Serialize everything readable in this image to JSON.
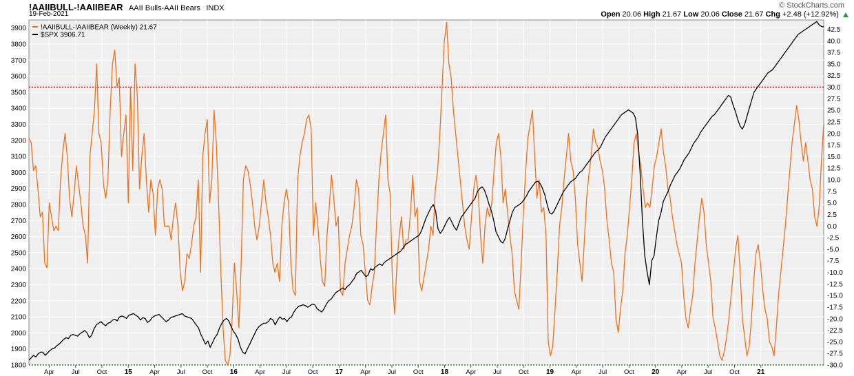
{
  "header": {
    "symbol": "!AAIIBULL-!AAIIBEAR",
    "description": "AAII Bulls-AAII Bears",
    "exchange": "INDX",
    "date": "19-Feb-2021",
    "source": "© StockCharts.com",
    "open_label": "Open",
    "open": "20.06",
    "high_label": "High",
    "high": "21.67",
    "low_label": "Low",
    "low": "20.06",
    "close_label": "Close",
    "close": "21.67",
    "chg_label": "Chg",
    "chg": "+2.48 (+12.92%)",
    "chg_icon": "up-triangle-icon"
  },
  "chart_data": {
    "type": "line",
    "colors": {
      "bull_bear": "#f07017",
      "spx": "#000000",
      "bg": "#efefef",
      "resistance": "#cc0000",
      "support": "#228822"
    },
    "left_axis": {
      "min": 1800,
      "max": 3950,
      "ticks": [
        1800,
        1900,
        2000,
        2100,
        2200,
        2300,
        2400,
        2500,
        2600,
        2700,
        2800,
        2900,
        3000,
        3100,
        3200,
        3300,
        3400,
        3500,
        3600,
        3700,
        3800,
        3900
      ]
    },
    "right_axis": {
      "min": -30,
      "max": 44.5,
      "ticks": [
        "42.5",
        "40.0",
        "37.5",
        "35.0",
        "32.5",
        "30.0",
        "27.5",
        "25.0",
        "22.5",
        "20.0",
        "17.5",
        "15.0",
        "12.5",
        "10.0",
        "7.5",
        "5.0",
        "2.5",
        "0.0",
        "-2.5",
        "-5.0",
        "-7.5",
        "-10.0",
        "-12.5",
        "-15.0",
        "-17.5",
        "-20.0",
        "-22.5",
        "-25.0",
        "-27.5",
        "-30.0"
      ]
    },
    "x_range": [
      0,
      392
    ],
    "x_ticks": [
      {
        "label": "Apr",
        "x": 10
      },
      {
        "label": "Jul",
        "x": 23
      },
      {
        "label": "Oct",
        "x": 36
      },
      {
        "label": "15",
        "x": 49,
        "year": true
      },
      {
        "label": "Apr",
        "x": 62
      },
      {
        "label": "Jul",
        "x": 75
      },
      {
        "label": "Oct",
        "x": 88
      },
      {
        "label": "16",
        "x": 101,
        "year": true
      },
      {
        "label": "Apr",
        "x": 114
      },
      {
        "label": "Jul",
        "x": 127
      },
      {
        "label": "Oct",
        "x": 140
      },
      {
        "label": "17",
        "x": 153,
        "year": true
      },
      {
        "label": "Apr",
        "x": 166
      },
      {
        "label": "Jul",
        "x": 179
      },
      {
        "label": "Oct",
        "x": 192
      },
      {
        "label": "18",
        "x": 205,
        "year": true
      },
      {
        "label": "Apr",
        "x": 218
      },
      {
        "label": "Jul",
        "x": 231
      },
      {
        "label": "Oct",
        "x": 244
      },
      {
        "label": "19",
        "x": 257,
        "year": true
      },
      {
        "label": "Apr",
        "x": 270
      },
      {
        "label": "Jul",
        "x": 283
      },
      {
        "label": "Oct",
        "x": 296
      },
      {
        "label": "20",
        "x": 309,
        "year": true
      },
      {
        "label": "Apr",
        "x": 322
      },
      {
        "label": "Jul",
        "x": 335
      },
      {
        "label": "Oct",
        "x": 348
      },
      {
        "label": "21",
        "x": 361,
        "year": true
      }
    ],
    "lines": {
      "resistance": 30,
      "support": -30
    },
    "series": [
      {
        "name": "!AAIIBULL-!AAIIBEAR (Weekly) 21.67",
        "axis": "right",
        "values": [
          19,
          18,
          12,
          13,
          8,
          2,
          3,
          -8,
          -9,
          5,
          2,
          -1,
          0,
          -1,
          10,
          16,
          20,
          15,
          6,
          2,
          7,
          13,
          9,
          5,
          0,
          -2,
          -8,
          15,
          20,
          25,
          35,
          20,
          18,
          9,
          6,
          10,
          25,
          35,
          38,
          30,
          32,
          15,
          20,
          24,
          5,
          30,
          12,
          35,
          28,
          8,
          15,
          20,
          10,
          3,
          10,
          7,
          -2,
          8,
          10,
          8,
          0,
          0,
          0,
          -3,
          2,
          5,
          0,
          -10,
          -14,
          -12,
          -6,
          -7,
          -4,
          0,
          2,
          10,
          -10,
          15,
          20,
          23,
          5,
          10,
          25,
          18,
          5,
          -10,
          -22,
          -29,
          -30,
          -28,
          -20,
          -8,
          -14,
          -22,
          -8,
          10,
          13,
          12,
          9,
          5,
          0,
          -3,
          0,
          5,
          10,
          5,
          2,
          -2,
          -8,
          -10,
          -8,
          -12,
          0,
          5,
          8,
          5,
          -8,
          -14,
          -15,
          10,
          15,
          18,
          20,
          23,
          24,
          21,
          -2,
          5,
          0,
          -7,
          -12,
          -13,
          -2,
          4,
          11,
          6,
          0,
          2,
          -14,
          -15,
          -8,
          -5,
          -2,
          0,
          4,
          10,
          8,
          -2,
          -4,
          -10,
          -16,
          -17,
          -13,
          -10,
          1,
          10,
          16,
          20,
          24,
          10,
          7,
          -12,
          -19,
          -8,
          -2,
          2,
          -5,
          -3,
          -3,
          3,
          11,
          2,
          4,
          -12,
          -14,
          -11,
          -8,
          -5,
          0,
          -2,
          8,
          12,
          20,
          30,
          40,
          44,
          35,
          32,
          25,
          20,
          15,
          10,
          5,
          0,
          -3,
          -5,
          2,
          8,
          11,
          7,
          -2,
          -8,
          0,
          4,
          2,
          5,
          12,
          18,
          20,
          15,
          5,
          8,
          3,
          -2,
          -6,
          -14,
          -16,
          -18,
          -8,
          3,
          12,
          19,
          22,
          25,
          15,
          6,
          10,
          3,
          4,
          -2,
          -25,
          -28,
          -26,
          -18,
          -10,
          0,
          4,
          10,
          15,
          20,
          14,
          12,
          6,
          -4,
          -8,
          -12,
          -3,
          6,
          11,
          15,
          21,
          18,
          17,
          14,
          12,
          8,
          1,
          -3,
          -8,
          -10,
          -20,
          -23,
          -18,
          -14,
          -6,
          -2,
          4,
          10,
          18,
          20,
          16,
          13,
          8,
          4,
          5,
          4,
          8,
          13,
          15,
          18,
          21,
          16,
          13,
          8,
          6,
          2,
          -1,
          -4,
          -6,
          -8,
          -15,
          -20,
          -22,
          -18,
          -15,
          -8,
          -3,
          2,
          6,
          3,
          -4,
          -8,
          -12,
          -20,
          -22,
          -25,
          -28,
          -29,
          -27,
          -24,
          -20,
          -15,
          -10,
          -5,
          -2,
          -10,
          -20,
          -24,
          -28,
          -26,
          -20,
          -12,
          -6,
          -4,
          -8,
          -14,
          -18,
          -20,
          -25,
          -26,
          -28,
          -22,
          -15,
          -10,
          -5,
          0,
          6,
          12,
          18,
          22,
          26,
          23,
          18,
          14,
          18,
          14,
          10,
          8,
          2,
          0,
          4,
          14,
          22
        ],
        "color": "#f07017"
      },
      {
        "name": "$SPX 3906.71",
        "axis": "left",
        "values": [
          1830,
          1845,
          1860,
          1850,
          1870,
          1880,
          1880,
          1860,
          1875,
          1890,
          1900,
          1905,
          1920,
          1930,
          1945,
          1960,
          1970,
          1965,
          1985,
          1990,
          1985,
          1980,
          1995,
          2005,
          2015,
          2000,
          1970,
          1985,
          2025,
          2050,
          2060,
          2070,
          2055,
          2045,
          2060,
          2065,
          2080,
          2085,
          2075,
          2100,
          2105,
          2100,
          2090,
          2110,
          2115,
          2120,
          2110,
          2100,
          2080,
          2095,
          2090,
          2065,
          2075,
          2095,
          2105,
          2110,
          2115,
          2100,
          2085,
          2070,
          2080,
          2095,
          2100,
          2105,
          2110,
          2115,
          2120,
          2105,
          2100,
          2095,
          2090,
          2070,
          2050,
          2030,
          1990,
          1960,
          1930,
          1950,
          1910,
          1940,
          1970,
          1990,
          2030,
          2060,
          2080,
          2090,
          2075,
          2040,
          2010,
          1990,
          1960,
          1910,
          1880,
          1870,
          1900,
          1930,
          1960,
          1990,
          2020,
          2040,
          2050,
          2060,
          2060,
          2070,
          2090,
          2080,
          2050,
          2080,
          2100,
          2085,
          2090,
          2070,
          2090,
          2100,
          2130,
          2150,
          2165,
          2170,
          2175,
          2170,
          2160,
          2170,
          2180,
          2175,
          2150,
          2140,
          2130,
          2150,
          2180,
          2200,
          2210,
          2230,
          2250,
          2260,
          2270,
          2280,
          2270,
          2290,
          2300,
          2320,
          2340,
          2370,
          2380,
          2390,
          2370,
          2350,
          2360,
          2400,
          2390,
          2410,
          2420,
          2430,
          2420,
          2440,
          2450,
          2460,
          2470,
          2480,
          2490,
          2500,
          2510,
          2530,
          2550,
          2560,
          2570,
          2580,
          2590,
          2600,
          2610,
          2640,
          2680,
          2720,
          2750,
          2780,
          2800,
          2760,
          2650,
          2620,
          2640,
          2670,
          2700,
          2720,
          2690,
          2660,
          2640,
          2680,
          2720,
          2740,
          2760,
          2780,
          2800,
          2820,
          2840,
          2880,
          2900,
          2910,
          2890,
          2850,
          2800,
          2760,
          2700,
          2630,
          2600,
          2570,
          2560,
          2590,
          2650,
          2700,
          2750,
          2780,
          2790,
          2800,
          2810,
          2830,
          2850,
          2880,
          2900,
          2920,
          2940,
          2945,
          2930,
          2900,
          2860,
          2800,
          2750,
          2740,
          2760,
          2790,
          2820,
          2850,
          2880,
          2900,
          2920,
          2940,
          2950,
          2960,
          2980,
          3000,
          3010,
          3030,
          3050,
          3070,
          3090,
          3110,
          3130,
          3140,
          3160,
          3190,
          3220,
          3240,
          3260,
          3280,
          3300,
          3320,
          3340,
          3360,
          3370,
          3380,
          3390,
          3380,
          3370,
          3340,
          3230,
          3000,
          2700,
          2480,
          2380,
          2300,
          2450,
          2480,
          2600,
          2700,
          2750,
          2820,
          2850,
          2880,
          2920,
          2950,
          2980,
          3000,
          3020,
          3050,
          3080,
          3100,
          3120,
          3150,
          3180,
          3200,
          3220,
          3250,
          3270,
          3290,
          3310,
          3330,
          3350,
          3360,
          3380,
          3400,
          3420,
          3440,
          3460,
          3480,
          3470,
          3420,
          3380,
          3330,
          3290,
          3270,
          3300,
          3350,
          3400,
          3450,
          3500,
          3520,
          3540,
          3560,
          3580,
          3600,
          3620,
          3630,
          3640,
          3660,
          3680,
          3700,
          3720,
          3740,
          3760,
          3780,
          3800,
          3820,
          3840,
          3860,
          3870,
          3880,
          3890,
          3900,
          3910,
          3920,
          3930,
          3940,
          3920,
          3910,
          3906
        ],
        "color": "#000000"
      }
    ],
    "legend_position": "top-left"
  }
}
